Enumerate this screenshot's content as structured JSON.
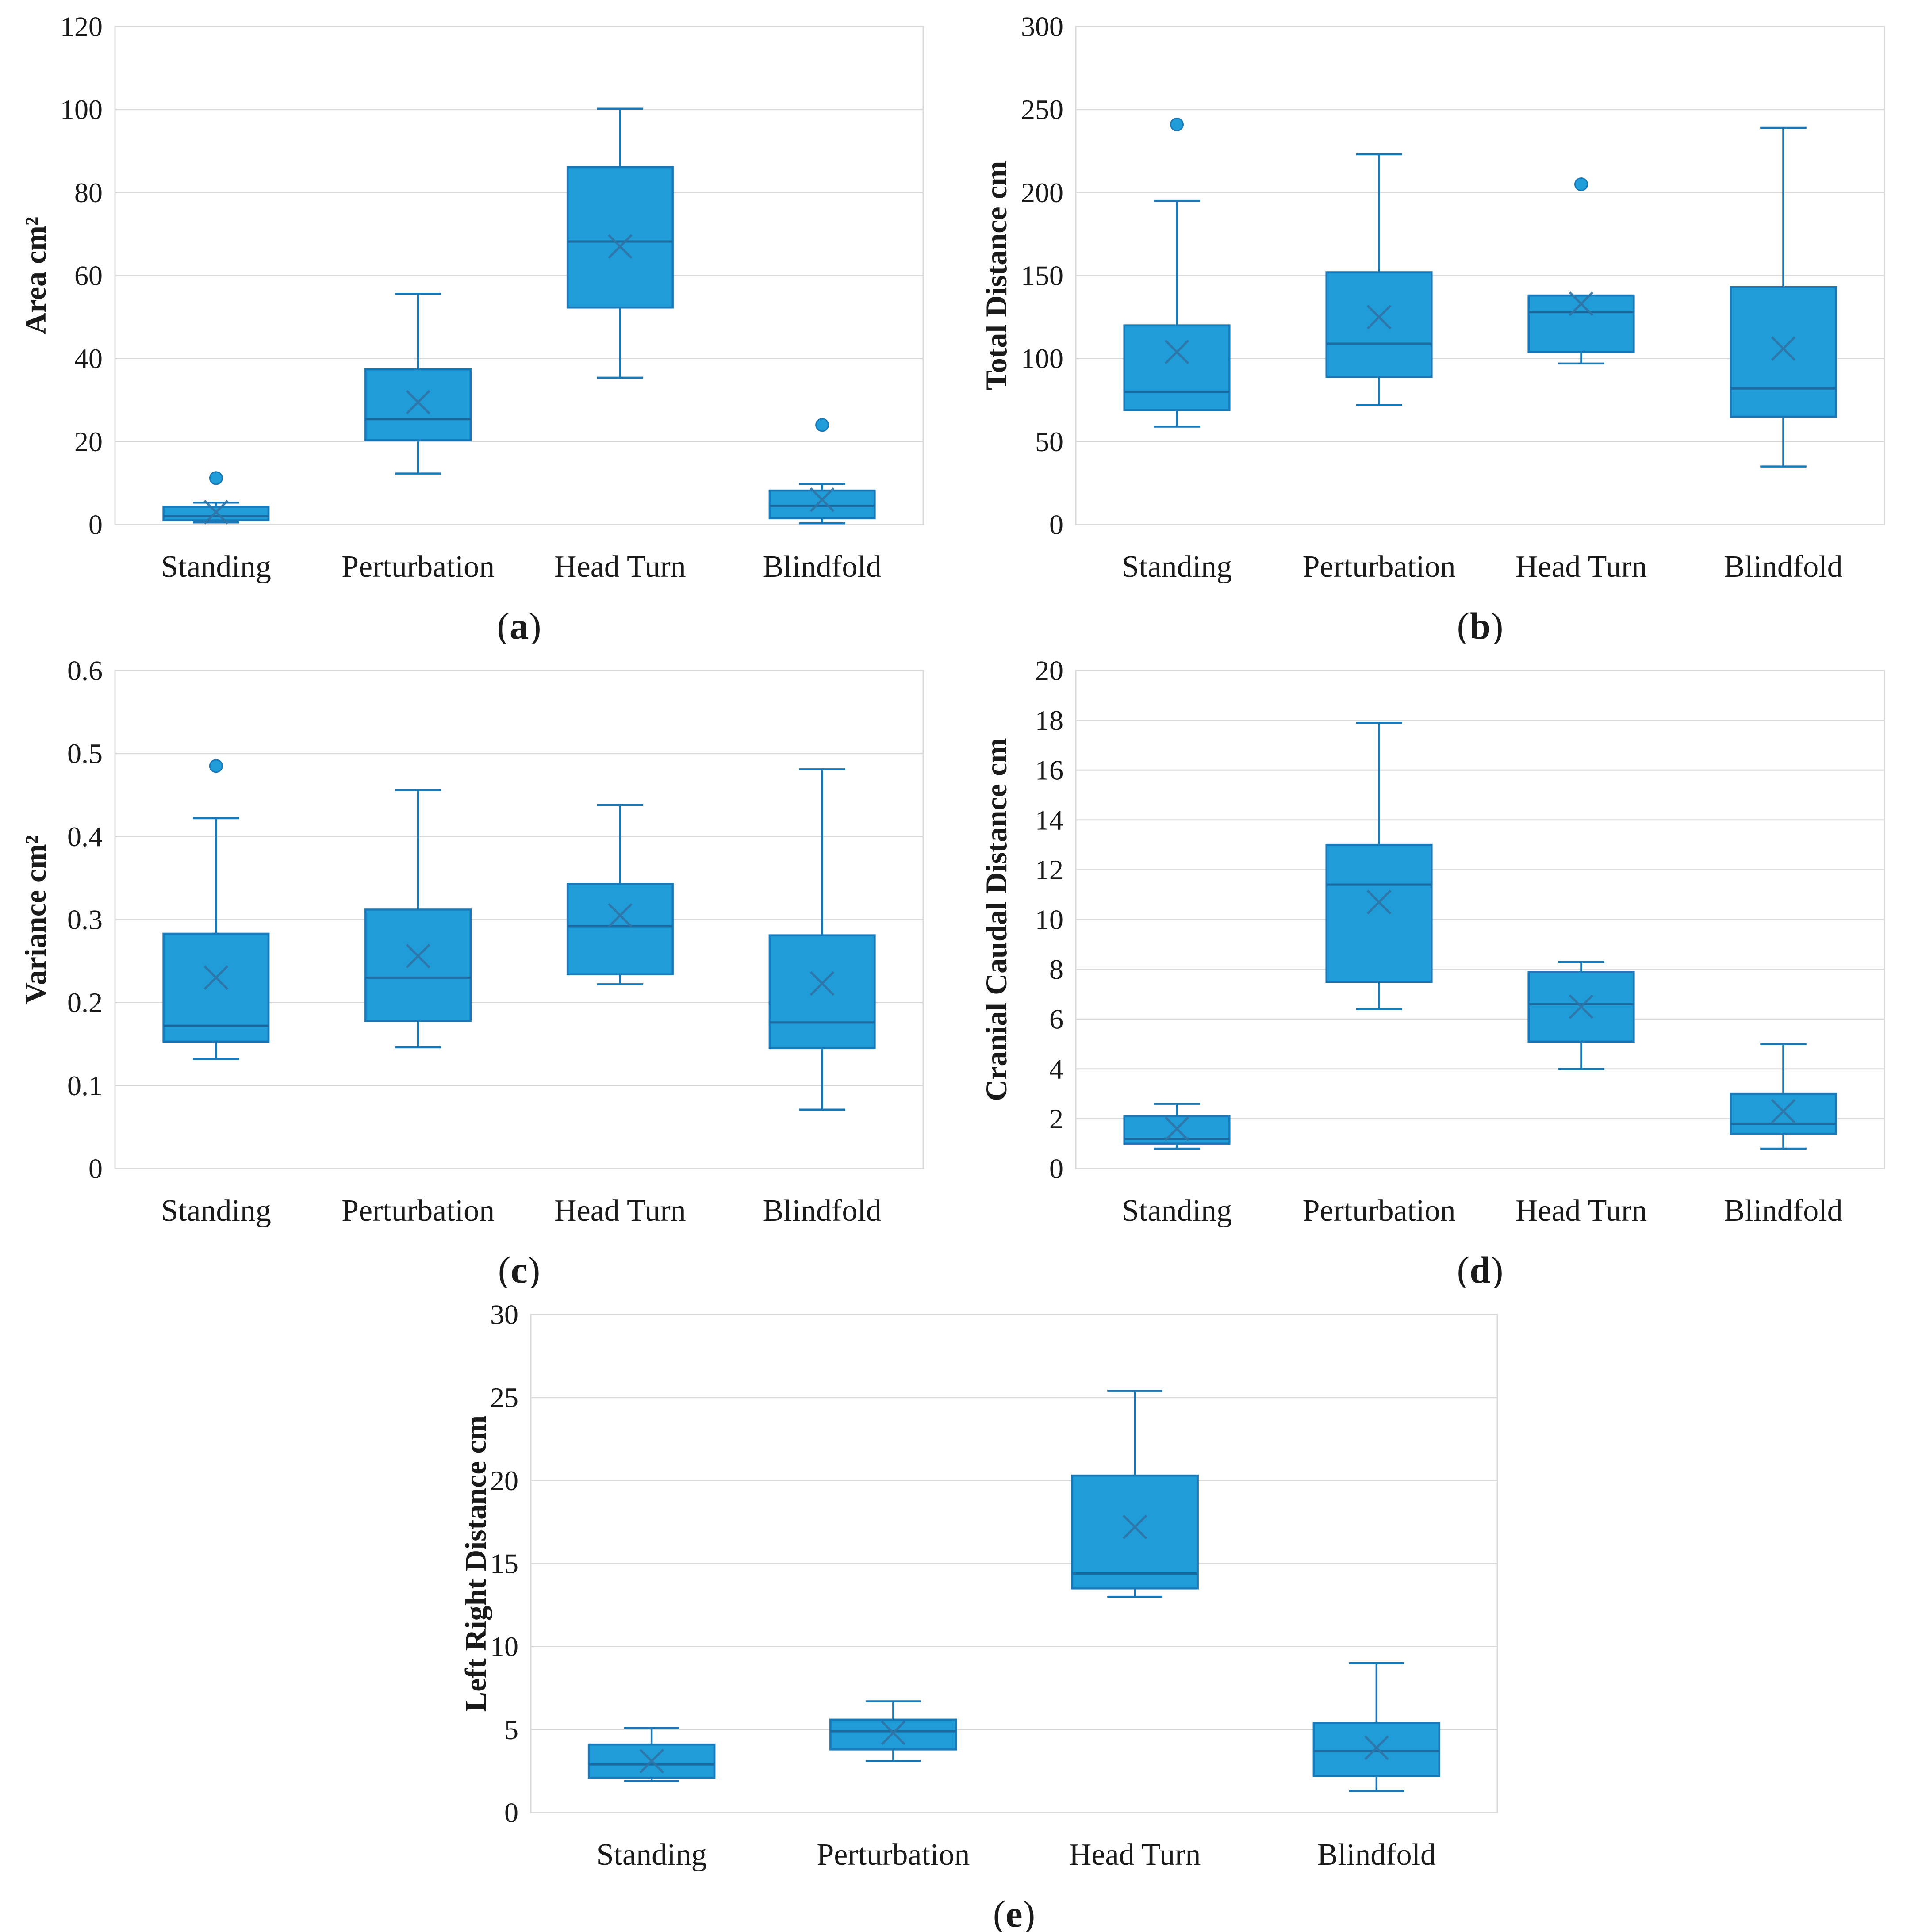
{
  "figure": {
    "background": "#ffffff",
    "conditions": [
      "Standing",
      "Perturbation",
      "Head Turn",
      "Blindfold"
    ]
  },
  "style": {
    "box_fill": "#209CD8",
    "box_stroke": "#1878B8",
    "median_color": "#1A699F",
    "mean_color": "#2F74A6",
    "grid_color": "#D9D9D9",
    "text_color": "#1A1A1A"
  },
  "chart_data": [
    {
      "id": "a",
      "type": "box",
      "caption": "a",
      "ylabel": "Area cm²",
      "ylim": [
        0,
        120
      ],
      "ytick_step": 20,
      "grid": true,
      "categories": [
        "Standing",
        "Perturbation",
        "Head Turn",
        "Blindfold"
      ],
      "series": [
        {
          "label": "Standing",
          "whislo": 0.5,
          "q1": 1.0,
          "med": 2.0,
          "q3": 4.3,
          "whishi": 5.3,
          "mean": 3.0,
          "outliers": [
            11.2
          ]
        },
        {
          "label": "Perturbation",
          "whislo": 12.3,
          "q1": 20.3,
          "med": 25.4,
          "q3": 37.4,
          "whishi": 55.6,
          "mean": 29.5,
          "outliers": []
        },
        {
          "label": "Head Turn",
          "whislo": 35.4,
          "q1": 52.3,
          "med": 68.2,
          "q3": 86.1,
          "whishi": 100.2,
          "mean": 67.0,
          "outliers": []
        },
        {
          "label": "Blindfold",
          "whislo": 0.3,
          "q1": 1.5,
          "med": 4.5,
          "q3": 8.2,
          "whishi": 9.8,
          "mean": 6.0,
          "outliers": [
            24.0
          ]
        }
      ]
    },
    {
      "id": "b",
      "type": "box",
      "caption": "b",
      "ylabel": "Total Distance cm",
      "ylim": [
        0,
        300
      ],
      "ytick_step": 50,
      "grid": true,
      "categories": [
        "Standing",
        "Perturbation",
        "Head Turn",
        "Blindfold"
      ],
      "series": [
        {
          "label": "Standing",
          "whislo": 59.0,
          "q1": 69.0,
          "med": 80.0,
          "q3": 120.0,
          "whishi": 195.0,
          "mean": 104.0,
          "outliers": [
            241.0
          ]
        },
        {
          "label": "Perturbation",
          "whislo": 72.0,
          "q1": 89.0,
          "med": 109.0,
          "q3": 152.0,
          "whishi": 223.0,
          "mean": 125.0,
          "outliers": []
        },
        {
          "label": "Head Turn",
          "whislo": 97.0,
          "q1": 104.0,
          "med": 128.0,
          "q3": 138.0,
          "whishi": 138.0,
          "mean": 133.0,
          "outliers": [
            205.0
          ]
        },
        {
          "label": "Blindfold",
          "whislo": 35.0,
          "q1": 65.0,
          "med": 82.0,
          "q3": 143.0,
          "whishi": 239.0,
          "mean": 106.0,
          "outliers": []
        }
      ]
    },
    {
      "id": "c",
      "type": "box",
      "caption": "c",
      "ylabel": "Variance cm²",
      "ylim": [
        0,
        0.6
      ],
      "ytick_step": 0.1,
      "grid": true,
      "categories": [
        "Standing",
        "Perturbation",
        "Head Turn",
        "Blindfold"
      ],
      "series": [
        {
          "label": "Standing",
          "whislo": 0.132,
          "q1": 0.153,
          "med": 0.172,
          "q3": 0.283,
          "whishi": 0.422,
          "mean": 0.23,
          "outliers": [
            0.485
          ]
        },
        {
          "label": "Perturbation",
          "whislo": 0.146,
          "q1": 0.178,
          "med": 0.23,
          "q3": 0.312,
          "whishi": 0.456,
          "mean": 0.256,
          "outliers": []
        },
        {
          "label": "Head Turn",
          "whislo": 0.222,
          "q1": 0.234,
          "med": 0.292,
          "q3": 0.343,
          "whishi": 0.438,
          "mean": 0.305,
          "outliers": []
        },
        {
          "label": "Blindfold",
          "whislo": 0.071,
          "q1": 0.145,
          "med": 0.176,
          "q3": 0.281,
          "whishi": 0.481,
          "mean": 0.223,
          "outliers": []
        }
      ]
    },
    {
      "id": "d",
      "type": "box",
      "caption": "d",
      "ylabel": "Cranial Caudal Distance cm",
      "ylim": [
        0,
        20
      ],
      "ytick_step": 2,
      "grid": true,
      "categories": [
        "Standing",
        "Perturbation",
        "Head Turn",
        "Blindfold"
      ],
      "series": [
        {
          "label": "Standing",
          "whislo": 0.8,
          "q1": 1.0,
          "med": 1.2,
          "q3": 2.1,
          "whishi": 2.6,
          "mean": 1.6,
          "outliers": []
        },
        {
          "label": "Perturbation",
          "whislo": 6.4,
          "q1": 7.5,
          "med": 11.4,
          "q3": 13.0,
          "whishi": 17.9,
          "mean": 10.7,
          "outliers": []
        },
        {
          "label": "Head Turn",
          "whislo": 4.0,
          "q1": 5.1,
          "med": 6.6,
          "q3": 7.9,
          "whishi": 8.3,
          "mean": 6.5,
          "outliers": []
        },
        {
          "label": "Blindfold",
          "whislo": 0.8,
          "q1": 1.4,
          "med": 1.8,
          "q3": 3.0,
          "whishi": 5.0,
          "mean": 2.3,
          "outliers": []
        }
      ]
    },
    {
      "id": "e",
      "type": "box",
      "caption": "e",
      "ylabel": "Left Right Distance cm",
      "ylim": [
        0,
        30
      ],
      "ytick_step": 5,
      "grid": true,
      "categories": [
        "Standing",
        "Perturbation",
        "Head Turn",
        "Blindfold"
      ],
      "series": [
        {
          "label": "Standing",
          "whislo": 1.9,
          "q1": 2.1,
          "med": 2.9,
          "q3": 4.1,
          "whishi": 5.1,
          "mean": 3.1,
          "outliers": []
        },
        {
          "label": "Perturbation",
          "whislo": 3.1,
          "q1": 3.8,
          "med": 4.9,
          "q3": 5.6,
          "whishi": 6.7,
          "mean": 4.8,
          "outliers": []
        },
        {
          "label": "Head Turn",
          "whislo": 13.0,
          "q1": 13.5,
          "med": 14.4,
          "q3": 20.3,
          "whishi": 25.4,
          "mean": 17.2,
          "outliers": []
        },
        {
          "label": "Blindfold",
          "whislo": 1.3,
          "q1": 2.2,
          "med": 3.7,
          "q3": 5.4,
          "whishi": 9.0,
          "mean": 3.9,
          "outliers": []
        }
      ]
    }
  ]
}
